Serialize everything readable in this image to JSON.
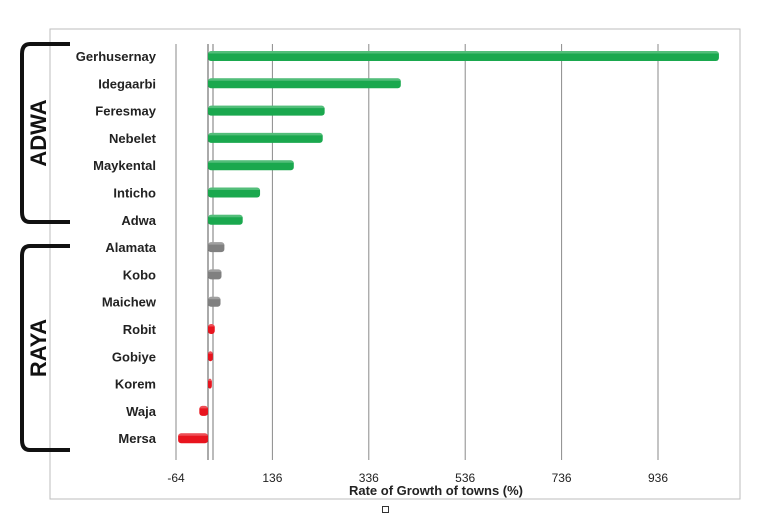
{
  "chart_data": {
    "type": "bar",
    "orientation": "horizontal",
    "title": "",
    "xlabel": "Rate of Growth of towns (%)",
    "ylabel": "",
    "xlim": [
      -64,
      1060
    ],
    "x_ticks": [
      -64,
      136,
      336,
      536,
      736,
      936
    ],
    "grid": true,
    "legend": "none",
    "categories": [
      "Gerhusernay",
      "Idegaarbi",
      "Feresmay",
      "Nebelet",
      "Maykental",
      "Inticho",
      "Adwa",
      "Alamata",
      "Kobo",
      "Maichew",
      "Robit",
      "Gobiye",
      "Korem",
      "Waja",
      "Mersa"
    ],
    "values": [
      1060,
      400,
      242,
      238,
      178,
      108,
      72,
      34,
      28,
      26,
      14,
      10,
      8,
      -18,
      -62
    ],
    "groups": [
      {
        "label": "ADWA",
        "categories": [
          "Gerhusernay",
          "Idegaarbi",
          "Feresmay",
          "Nebelet",
          "Maykental",
          "Inticho",
          "Adwa"
        ]
      },
      {
        "label": "RAYA",
        "categories": [
          "Alamata",
          "Kobo",
          "Maichew",
          "Robit",
          "Gobiye",
          "Korem",
          "Waja",
          "Mersa"
        ]
      }
    ],
    "bar_colors": [
      "#1aa84e",
      "#1aa84e",
      "#1aa84e",
      "#1aa84e",
      "#1aa84e",
      "#1aa84e",
      "#1aa84e",
      "#808080",
      "#808080",
      "#808080",
      "#e8141e",
      "#e8141e",
      "#e8141e",
      "#e8141e",
      "#e8141e"
    ]
  },
  "colors": {
    "green": "#1aa84e",
    "gray": "#808080",
    "red": "#e8141e",
    "grid": "#8a8a8a",
    "frame": "#bdbdbd"
  }
}
